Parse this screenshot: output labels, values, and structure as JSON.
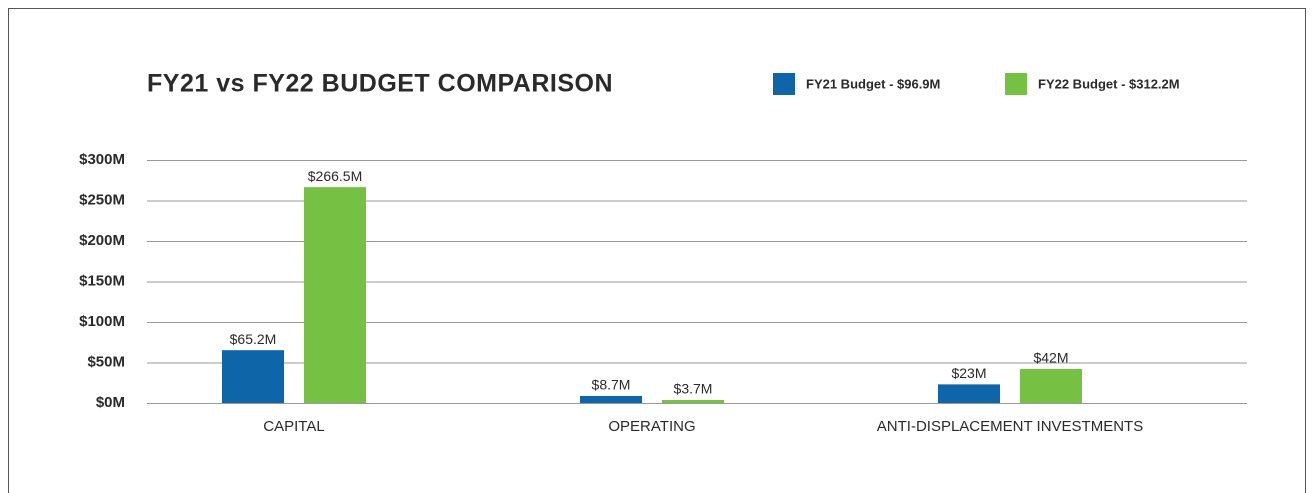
{
  "chart_data": {
    "type": "bar",
    "title": "FY21 vs FY22 BUDGET COMPARISON",
    "categories": [
      "CAPITAL",
      "OPERATING",
      "ANTI-DISPLACEMENT INVESTMENTS"
    ],
    "series": [
      {
        "name": "FY21 Budget - $96.9M",
        "color": "#0e65a8",
        "values": [
          65.2,
          8.7,
          23
        ],
        "value_labels": [
          "$65.2M",
          "$8.7M",
          "$23M"
        ]
      },
      {
        "name": "FY22 Budget - $312.2M",
        "color": "#76c043",
        "values": [
          266.5,
          3.7,
          42
        ],
        "value_labels": [
          "$266.5M",
          "$3.7M",
          "$42M"
        ]
      }
    ],
    "ylim": [
      0,
      300
    ],
    "yticks": [
      {
        "value": 0,
        "label": "$0M"
      },
      {
        "value": 50,
        "label": "$50M"
      },
      {
        "value": 100,
        "label": "$100M"
      },
      {
        "value": 150,
        "label": "$150M"
      },
      {
        "value": 200,
        "label": "$200M"
      },
      {
        "value": 250,
        "label": "$250M"
      },
      {
        "value": 300,
        "label": "$300M"
      }
    ],
    "grid": true,
    "legend": "top-right"
  }
}
